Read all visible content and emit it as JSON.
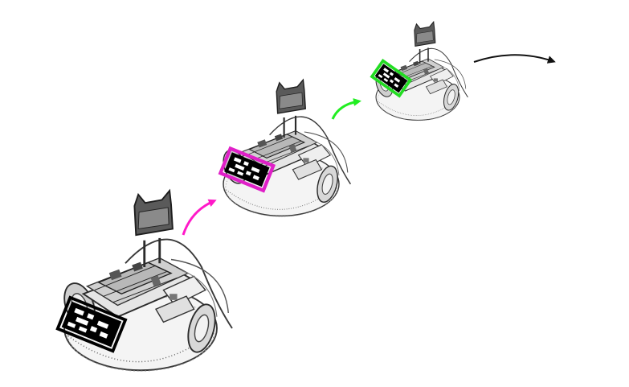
{
  "figure": {
    "colors": {
      "background": "#ffffff",
      "robot_ink": "#3a3a3a",
      "robot_light": "#8a8a8a",
      "marker_frame_1": "#000000",
      "marker_frame_2": "#e020c8",
      "marker_frame_3": "#22dd22",
      "arrow_1": "#ff19c8",
      "arrow_2": "#22ee22",
      "arrow_3": "#111111"
    },
    "robots": [
      {
        "name": "robot-1",
        "marker_color": "#000000"
      },
      {
        "name": "robot-2",
        "marker_color": "#e020c8"
      },
      {
        "name": "robot-3",
        "marker_color": "#22dd22"
      }
    ],
    "arrows": [
      {
        "name": "arrow-magenta",
        "color": "#ff19c8"
      },
      {
        "name": "arrow-green",
        "color": "#22ee22"
      },
      {
        "name": "arrow-black",
        "color": "#111111"
      }
    ]
  }
}
